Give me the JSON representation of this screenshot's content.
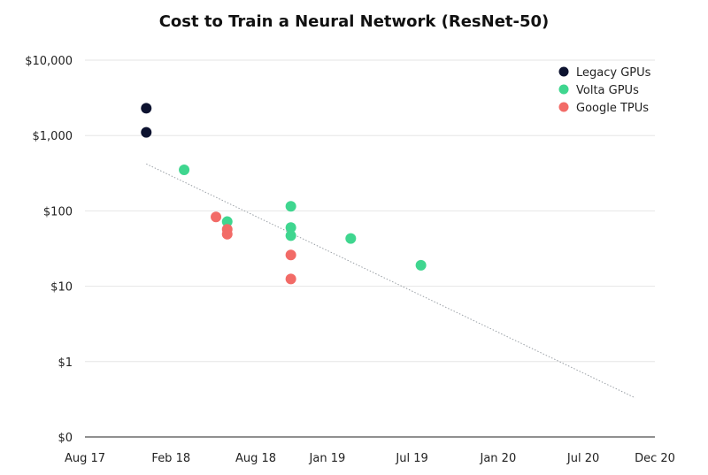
{
  "chart_data": {
    "type": "scatter",
    "title": "Cost to Train a Neural Network (ResNet-50)",
    "xlabel": "",
    "ylabel": "",
    "y_scale": "log",
    "xlim": [
      "2017-08-01",
      "2020-12-01"
    ],
    "ylim": [
      0.1,
      10000
    ],
    "x_ticks": [
      {
        "date": "2017-08-01",
        "label": "Aug 17"
      },
      {
        "date": "2018-02-01",
        "label": "Feb 18"
      },
      {
        "date": "2018-08-01",
        "label": "Aug 18"
      },
      {
        "date": "2019-01-01",
        "label": "Jan 19"
      },
      {
        "date": "2019-07-01",
        "label": "Jul 19"
      },
      {
        "date": "2020-01-01",
        "label": "Jan 20"
      },
      {
        "date": "2020-07-01",
        "label": "Jul 20"
      },
      {
        "date": "2020-12-01",
        "label": "Dec 20"
      }
    ],
    "y_ticks": [
      {
        "value": 10000,
        "label": "$10,000"
      },
      {
        "value": 1000,
        "label": "$1,000"
      },
      {
        "value": 100,
        "label": "$100"
      },
      {
        "value": 10,
        "label": "$10"
      },
      {
        "value": 1,
        "label": "$1"
      },
      {
        "value": 0.1,
        "label": "$0"
      }
    ],
    "grid": true,
    "legend_position": "top-right",
    "series": [
      {
        "name": "Legacy GPUs",
        "color": "#0d1330",
        "points": [
          {
            "x": "2017-12-10",
            "y": 2300
          },
          {
            "x": "2017-12-10",
            "y": 1100
          }
        ]
      },
      {
        "name": "Volta GPUs",
        "color": "#3fd68f",
        "points": [
          {
            "x": "2018-03-01",
            "y": 350
          },
          {
            "x": "2018-06-01",
            "y": 72
          },
          {
            "x": "2018-10-15",
            "y": 115
          },
          {
            "x": "2018-10-15",
            "y": 60
          },
          {
            "x": "2018-10-15",
            "y": 47
          },
          {
            "x": "2019-02-20",
            "y": 43
          },
          {
            "x": "2019-07-20",
            "y": 19
          }
        ]
      },
      {
        "name": "Google TPUs",
        "color": "#f26b67",
        "points": [
          {
            "x": "2018-05-08",
            "y": 83
          },
          {
            "x": "2018-06-01",
            "y": 57
          },
          {
            "x": "2018-06-01",
            "y": 49
          },
          {
            "x": "2018-10-15",
            "y": 26
          },
          {
            "x": "2018-10-15",
            "y": 12.5
          }
        ]
      }
    ],
    "trendline": {
      "start": {
        "x": "2017-12-10",
        "y": 420
      },
      "end": {
        "x": "2020-10-20",
        "y": 0.33
      }
    }
  }
}
